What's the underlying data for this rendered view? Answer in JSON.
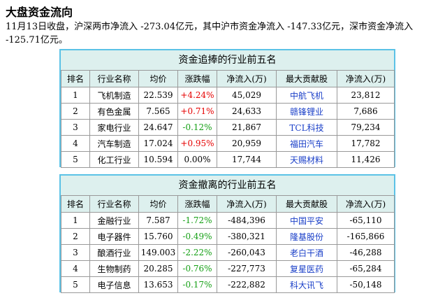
{
  "title": "大盘资金流向",
  "summary": "11月13日收盘，沪深两市净流入 -273.04亿元，其中沪市资金净流入 -147.33亿元，深市资金净流入 -125.71亿元。",
  "colors": {
    "positive": "#e60000",
    "negative": "#16a016",
    "stock_link": "#1a3fc8",
    "border": "#5bc2e6",
    "header_bg": "#ddf0ee"
  },
  "table_inflow": {
    "heading": "资金追捧的行业前五名",
    "columns": [
      "排名",
      "行业名称",
      "均价",
      "涨跌幅",
      "净流入(万)",
      "最大贡献股",
      "净流入(万)"
    ],
    "rows": [
      {
        "rank": "1",
        "industry": "飞机制造",
        "avg_price": "22.539",
        "change": "+4.24%",
        "change_dir": "pos",
        "net_inflow": "45,029",
        "top_stock": "中航飞机",
        "stock_inflow": "23,812"
      },
      {
        "rank": "2",
        "industry": "有色金属",
        "avg_price": "7.565",
        "change": "+0.71%",
        "change_dir": "pos",
        "net_inflow": "24,633",
        "top_stock": "赣锋锂业",
        "stock_inflow": "7,686"
      },
      {
        "rank": "3",
        "industry": "家电行业",
        "avg_price": "24.647",
        "change": "-0.12%",
        "change_dir": "neg",
        "net_inflow": "21,867",
        "top_stock": "TCL科技",
        "stock_inflow": "79,234"
      },
      {
        "rank": "4",
        "industry": "汽车制造",
        "avg_price": "17.024",
        "change": "+0.95%",
        "change_dir": "pos",
        "net_inflow": "20,959",
        "top_stock": "福田汽车",
        "stock_inflow": "17,782"
      },
      {
        "rank": "5",
        "industry": "化工行业",
        "avg_price": "10.594",
        "change": "0.00%",
        "change_dir": "zero",
        "net_inflow": "17,744",
        "top_stock": "天赐材料",
        "stock_inflow": "11,426"
      }
    ]
  },
  "table_outflow": {
    "heading": "资金撤离的行业前五名",
    "columns": [
      "排名",
      "行业名称",
      "均价",
      "涨跌幅",
      "净流入(万)",
      "最大贡献股",
      "净流入(万)"
    ],
    "rows": [
      {
        "rank": "1",
        "industry": "金融行业",
        "avg_price": "7.587",
        "change": "-1.72%",
        "change_dir": "neg",
        "net_inflow": "-484,396",
        "top_stock": "中国平安",
        "stock_inflow": "-65,110"
      },
      {
        "rank": "2",
        "industry": "电子器件",
        "avg_price": "15.760",
        "change": "-0.49%",
        "change_dir": "neg",
        "net_inflow": "-380,321",
        "top_stock": "隆基股份",
        "stock_inflow": "-165,866"
      },
      {
        "rank": "3",
        "industry": "酿酒行业",
        "avg_price": "149.003",
        "change": "-2.22%",
        "change_dir": "neg",
        "net_inflow": "-260,043",
        "top_stock": "老白干酒",
        "stock_inflow": "-46,288"
      },
      {
        "rank": "4",
        "industry": "生物制药",
        "avg_price": "20.285",
        "change": "-0.76%",
        "change_dir": "neg",
        "net_inflow": "-227,773",
        "top_stock": "复星医药",
        "stock_inflow": "-65,284"
      },
      {
        "rank": "5",
        "industry": "电子信息",
        "avg_price": "13.653",
        "change": "-0.17%",
        "change_dir": "neg",
        "net_inflow": "-222,882",
        "top_stock": "科大讯飞",
        "stock_inflow": "-50,148"
      }
    ]
  }
}
